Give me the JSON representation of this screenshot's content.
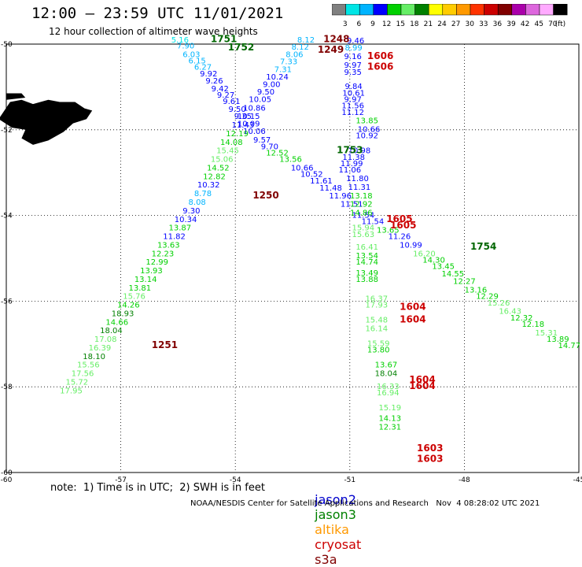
{
  "header": {
    "title": "12:00 – 23:59 UTC 11/01/2021",
    "subtitle": "12 hour collection of altimeter wave heights"
  },
  "colorbar": {
    "colors": [
      "#808080",
      "#00e5e5",
      "#00b4ff",
      "#0000ff",
      "#00d000",
      "#66ee66",
      "#008000",
      "#ffff00",
      "#ffcc00",
      "#ff9900",
      "#ff3300",
      "#cc0000",
      "#800000",
      "#aa00aa",
      "#dd66dd",
      "#ffaaff",
      "#000000"
    ],
    "labels": [
      "3",
      "6",
      "9",
      "12",
      "15",
      "18",
      "21",
      "24",
      "27",
      "30",
      "33",
      "36",
      "39",
      "42",
      "45",
      "70",
      "(ft)"
    ]
  },
  "footer": {
    "note": "note:  1) Time is in UTC;  2) SWH is in feet",
    "legend": [
      {
        "name": "jason2",
        "color": "#0000cc"
      },
      {
        "name": "jason3",
        "color": "#008000"
      },
      {
        "name": "altika",
        "color": "#ff9900"
      },
      {
        "name": "cryosat",
        "color": "#cc0000"
      },
      {
        "name": "s3a",
        "color": "#800000"
      }
    ],
    "credit": "NOAA/NESDIS Center for Satellite Applications and Research   Nov  4 08:28:02 UTC 2021"
  },
  "chart_data": {
    "type": "scatter",
    "xlim": [
      -60,
      -45
    ],
    "ylim": [
      -60,
      -50
    ],
    "x_ticks": [
      "-60",
      "-57",
      "-54",
      "-51",
      "-48",
      "-45"
    ],
    "y_ticks": [
      "-50",
      "-52",
      "-54",
      "-56",
      "-58",
      "-60"
    ],
    "grid": true,
    "land_color": "#000000",
    "time_labels": [
      {
        "text": "1751",
        "x": -54.3,
        "y": -49.95,
        "color": "#006600"
      },
      {
        "text": "1752",
        "x": -53.85,
        "y": -50.15,
        "color": "#006600"
      },
      {
        "text": "1248",
        "x": -51.35,
        "y": -49.95,
        "color": "#800000"
      },
      {
        "text": "1249",
        "x": -51.5,
        "y": -50.2,
        "color": "#800000"
      },
      {
        "text": "1606",
        "x": -50.2,
        "y": -50.35,
        "color": "#cc0000"
      },
      {
        "text": "1606",
        "x": -50.2,
        "y": -50.6,
        "color": "#cc0000"
      },
      {
        "text": "1753",
        "x": -51.0,
        "y": -52.55,
        "color": "#006600"
      },
      {
        "text": "1250",
        "x": -53.2,
        "y": -53.6,
        "color": "#800000"
      },
      {
        "text": "1605",
        "x": -49.7,
        "y": -54.15,
        "color": "#cc0000"
      },
      {
        "text": "1605",
        "x": -49.6,
        "y": -54.3,
        "color": "#cc0000"
      },
      {
        "text": "1754",
        "x": -47.5,
        "y": -54.8,
        "color": "#006600"
      },
      {
        "text": "1604",
        "x": -49.35,
        "y": -56.2,
        "color": "#cc0000"
      },
      {
        "text": "1604",
        "x": -49.35,
        "y": -56.5,
        "color": "#cc0000"
      },
      {
        "text": "1251",
        "x": -55.85,
        "y": -57.1,
        "color": "#800000"
      },
      {
        "text": "1604",
        "x": -49.1,
        "y": -57.9,
        "color": "#cc0000"
      },
      {
        "text": "1604",
        "x": -49.1,
        "y": -58.05,
        "color": "#cc0000"
      },
      {
        "text": "1603",
        "x": -48.9,
        "y": -59.5,
        "color": "#cc0000"
      },
      {
        "text": "1603",
        "x": -48.9,
        "y": -59.75,
        "color": "#cc0000"
      }
    ],
    "series": [
      {
        "name": "jason3",
        "points": [
          [
            -55.45,
            -49.96,
            5.16
          ],
          [
            -55.3,
            -50.1,
            7.9
          ],
          [
            -55.15,
            -50.3,
            6.03
          ],
          [
            -55.0,
            -50.45,
            6.15
          ],
          [
            -54.85,
            -50.6,
            6.27
          ],
          [
            -54.7,
            -50.75,
            9.92
          ],
          [
            -54.55,
            -50.92,
            9.26
          ],
          [
            -54.4,
            -51.1,
            9.42
          ],
          [
            -54.25,
            -51.25,
            9.27
          ],
          [
            -54.1,
            -51.4,
            9.61
          ],
          [
            -53.95,
            -51.58,
            9.5
          ],
          [
            -53.8,
            -51.75,
            9.35
          ],
          [
            -53.65,
            -51.92,
            10.09
          ],
          [
            -53.5,
            -52.1,
            10.06
          ],
          [
            -53.3,
            -52.3,
            9.57
          ],
          [
            -53.1,
            -52.45,
            9.7
          ],
          [
            -52.9,
            -52.6,
            12.52
          ],
          [
            -52.55,
            -52.75,
            13.56
          ],
          [
            -52.25,
            -52.95,
            10.66
          ],
          [
            -52.0,
            -53.1,
            10.52
          ],
          [
            -51.75,
            -53.25,
            11.61
          ],
          [
            -51.5,
            -53.42,
            11.48
          ],
          [
            -51.25,
            -53.6,
            11.96
          ],
          [
            -50.95,
            -53.8,
            11.51
          ],
          [
            -50.65,
            -54.05,
            11.54
          ],
          [
            -50.4,
            -54.2,
            11.54
          ],
          [
            -50.0,
            -54.4,
            13.65
          ],
          [
            -49.7,
            -54.55,
            11.26
          ],
          [
            -49.4,
            -54.75,
            10.99
          ],
          [
            -49.05,
            -54.95,
            16.2
          ],
          [
            -48.8,
            -55.1,
            14.3
          ],
          [
            -48.55,
            -55.25,
            13.45
          ],
          [
            -48.3,
            -55.42,
            14.55
          ],
          [
            -48.0,
            -55.6,
            12.27
          ],
          [
            -47.7,
            -55.8,
            13.16
          ],
          [
            -47.4,
            -55.95,
            12.29
          ],
          [
            -47.1,
            -56.1,
            15.26
          ],
          [
            -46.8,
            -56.3,
            16.43
          ],
          [
            -46.5,
            -56.45,
            12.32
          ],
          [
            -46.2,
            -56.6,
            12.18
          ],
          [
            -45.85,
            -56.8,
            15.31
          ],
          [
            -45.55,
            -56.95,
            13.89
          ],
          [
            -45.25,
            -57.1,
            14.77
          ]
        ]
      },
      {
        "name": "jason2",
        "points": [
          [
            -52.15,
            -49.96,
            8.12
          ],
          [
            -52.3,
            -50.13,
            8.12
          ],
          [
            -52.45,
            -50.3,
            8.06
          ],
          [
            -52.6,
            -50.47,
            7.33
          ],
          [
            -52.75,
            -50.65,
            7.31
          ],
          [
            -52.9,
            -50.83,
            10.24
          ],
          [
            -53.05,
            -51.0,
            9.0
          ],
          [
            -53.2,
            -51.18,
            9.5
          ],
          [
            -53.35,
            -51.35,
            10.05
          ],
          [
            -53.5,
            -51.55,
            10.86
          ],
          [
            -53.65,
            -51.75,
            10.15
          ],
          [
            -53.8,
            -51.95,
            11.43
          ],
          [
            -53.95,
            -52.15,
            12.19
          ],
          [
            -54.1,
            -52.35,
            14.08
          ],
          [
            -54.2,
            -52.55,
            15.45
          ],
          [
            -54.35,
            -52.75,
            15.06
          ],
          [
            -54.45,
            -52.95,
            14.52
          ],
          [
            -54.55,
            -53.15,
            12.82
          ],
          [
            -54.7,
            -53.35,
            10.32
          ],
          [
            -54.85,
            -53.55,
            8.78
          ],
          [
            -55.0,
            -53.75,
            8.08
          ],
          [
            -55.15,
            -53.95,
            9.3
          ],
          [
            -55.3,
            -54.15,
            10.34
          ],
          [
            -55.45,
            -54.35,
            13.87
          ],
          [
            -55.6,
            -54.55,
            11.82
          ],
          [
            -55.75,
            -54.75,
            13.63
          ],
          [
            -55.9,
            -54.95,
            12.23
          ],
          [
            -56.05,
            -55.15,
            12.99
          ],
          [
            -56.2,
            -55.35,
            13.93
          ],
          [
            -56.35,
            -55.55,
            13.14
          ],
          [
            -56.5,
            -55.75,
            13.81
          ],
          [
            -56.65,
            -55.95,
            15.76
          ],
          [
            -56.8,
            -56.15,
            14.26
          ],
          [
            -56.95,
            -56.35,
            18.93
          ],
          [
            -57.1,
            -56.55,
            14.66
          ],
          [
            -57.25,
            -56.75,
            18.04
          ],
          [
            -57.4,
            -56.95,
            17.08
          ],
          [
            -57.55,
            -57.15,
            16.39
          ],
          [
            -57.7,
            -57.35,
            18.1
          ],
          [
            -57.85,
            -57.55,
            15.56
          ],
          [
            -58.0,
            -57.75,
            17.56
          ],
          [
            -58.15,
            -57.95,
            15.72
          ],
          [
            -58.3,
            -58.15,
            17.95
          ]
        ]
      },
      {
        "name": "altika",
        "points": [
          [
            -50.85,
            -49.98,
            9.46
          ],
          [
            -50.9,
            -50.15,
            8.99
          ],
          [
            -50.92,
            -50.35,
            9.16
          ],
          [
            -50.92,
            -50.55,
            9.97
          ],
          [
            -50.92,
            -50.72,
            9.35
          ],
          [
            -50.9,
            -51.05,
            9.84
          ],
          [
            -50.9,
            -51.2,
            10.61
          ],
          [
            -50.92,
            -51.35,
            9.97
          ],
          [
            -50.92,
            -51.5,
            11.56
          ],
          [
            -50.92,
            -51.65,
            11.12
          ],
          [
            -50.55,
            -51.85,
            13.85
          ],
          [
            -50.5,
            -52.05,
            10.66
          ],
          [
            -50.55,
            -52.2,
            10.92
          ],
          [
            -50.75,
            -52.55,
            10.98
          ],
          [
            -50.9,
            -52.7,
            11.38
          ],
          [
            -50.95,
            -52.85,
            11.99
          ],
          [
            -51.0,
            -53.0,
            11.06
          ],
          [
            -50.8,
            -53.2,
            11.8
          ],
          [
            -50.75,
            -53.4,
            11.31
          ],
          [
            -50.7,
            -53.6,
            13.18
          ],
          [
            -50.7,
            -53.8,
            12.92
          ],
          [
            -50.7,
            -54.0,
            14.86
          ],
          [
            -50.65,
            -54.35,
            15.94
          ],
          [
            -50.65,
            -54.5,
            15.63
          ],
          [
            -50.55,
            -54.8,
            16.41
          ],
          [
            -50.55,
            -55.0,
            13.54
          ],
          [
            -50.55,
            -55.15,
            14.74
          ],
          [
            -50.55,
            -55.4,
            13.49
          ],
          [
            -50.55,
            -55.55,
            13.88
          ],
          [
            -50.3,
            -56.0,
            16.37
          ],
          [
            -50.3,
            -56.15,
            17.93
          ],
          [
            -50.3,
            -56.5,
            15.48
          ],
          [
            -50.3,
            -56.7,
            16.14
          ],
          [
            -50.25,
            -57.05,
            15.59
          ],
          [
            -50.25,
            -57.2,
            13.8
          ],
          [
            -50.05,
            -57.55,
            13.67
          ],
          [
            -50.05,
            -57.75,
            18.04
          ],
          [
            -50.0,
            -58.05,
            16.33
          ],
          [
            -50.0,
            -58.2,
            16.94
          ],
          [
            -49.95,
            -58.55,
            15.19
          ],
          [
            -49.95,
            -58.8,
            14.13
          ],
          [
            -49.95,
            -59.0,
            12.31
          ]
        ]
      }
    ]
  }
}
